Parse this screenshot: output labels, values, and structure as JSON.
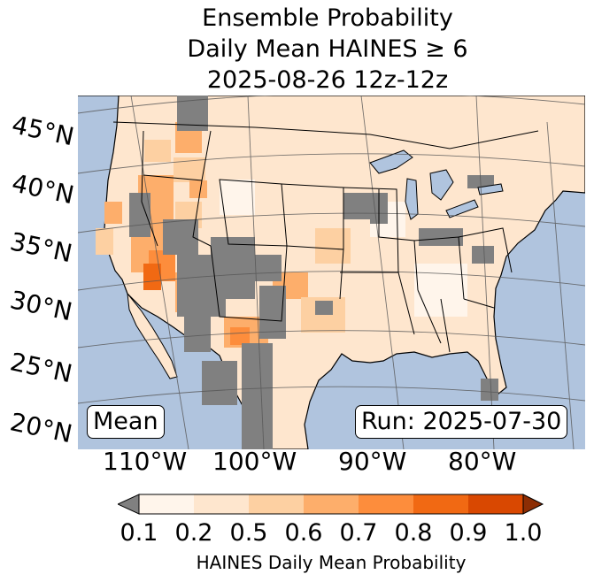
{
  "title": {
    "line1": "Ensemble Probability",
    "line2": "Daily Mean HAINES ≥ 6",
    "line3": "2025-08-26 12z-12z"
  },
  "map": {
    "latitude_labels": [
      "45°N",
      "40°N",
      "35°N",
      "30°N",
      "25°N",
      "20°N"
    ],
    "longitude_labels": [
      "110°W",
      "100°W",
      "90°W",
      "80°W"
    ],
    "stat_label": "Mean",
    "run_label": "Run: 2025-07-30",
    "colors": {
      "ocean": "#b0c4de",
      "land": "#ffffff",
      "missing": "#808080",
      "lakes": "#b0c4de"
    }
  },
  "colorbar": {
    "label": "HAINES Daily Mean Probability",
    "ticks": [
      "0.1",
      "0.2",
      "0.5",
      "0.6",
      "0.7",
      "0.8",
      "0.9",
      "1.0"
    ],
    "bins": [
      {
        "from": 0.1,
        "to": 0.2,
        "color": "#fff5eb"
      },
      {
        "from": 0.2,
        "to": 0.5,
        "color": "#fee6ce"
      },
      {
        "from": 0.5,
        "to": 0.6,
        "color": "#fdd0a2"
      },
      {
        "from": 0.6,
        "to": 0.7,
        "color": "#fdae6b"
      },
      {
        "from": 0.7,
        "to": 0.8,
        "color": "#fd8d3c"
      },
      {
        "from": 0.8,
        "to": 0.9,
        "color": "#f16913"
      },
      {
        "from": 0.9,
        "to": 1.0,
        "color": "#d94801"
      }
    ],
    "under_color": "#808080",
    "over_color": "#8c2d04"
  }
}
